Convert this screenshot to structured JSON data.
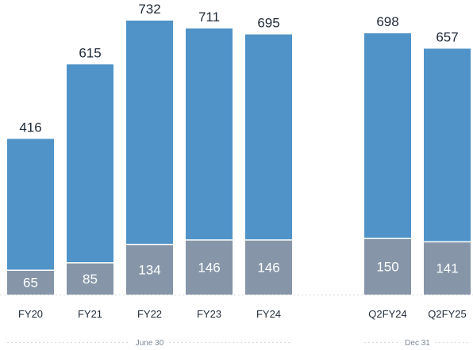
{
  "chart_data": {
    "type": "bar",
    "stacked": true,
    "categories": [
      "FY20",
      "FY21",
      "FY22",
      "FY23",
      "FY24",
      "Q2FY24",
      "Q2FY25"
    ],
    "totals": [
      416,
      615,
      732,
      711,
      695,
      698,
      657
    ],
    "series": [
      {
        "values": [
          65,
          85,
          134,
          146,
          146,
          150,
          141
        ],
        "color": "#8696a8"
      },
      {
        "values": [
          351,
          530,
          598,
          565,
          549,
          548,
          516
        ],
        "color": "#4f93c8"
      }
    ],
    "total_labels": [
      "416",
      "615",
      "732",
      "711",
      "695",
      "698",
      "657"
    ],
    "base_labels": [
      "65",
      "85",
      "134",
      "146",
      "146",
      "150",
      "141"
    ],
    "groups": [
      {
        "label": "June 30",
        "categories": [
          "FY20",
          "FY21",
          "FY22",
          "FY23",
          "FY24"
        ]
      },
      {
        "label": "Dec 31",
        "categories": [
          "Q2FY24",
          "Q2FY25"
        ]
      }
    ],
    "ylim": [
      0,
      760
    ],
    "grid": false,
    "legend": "none",
    "title": "",
    "xlabel": "",
    "ylabel": ""
  }
}
